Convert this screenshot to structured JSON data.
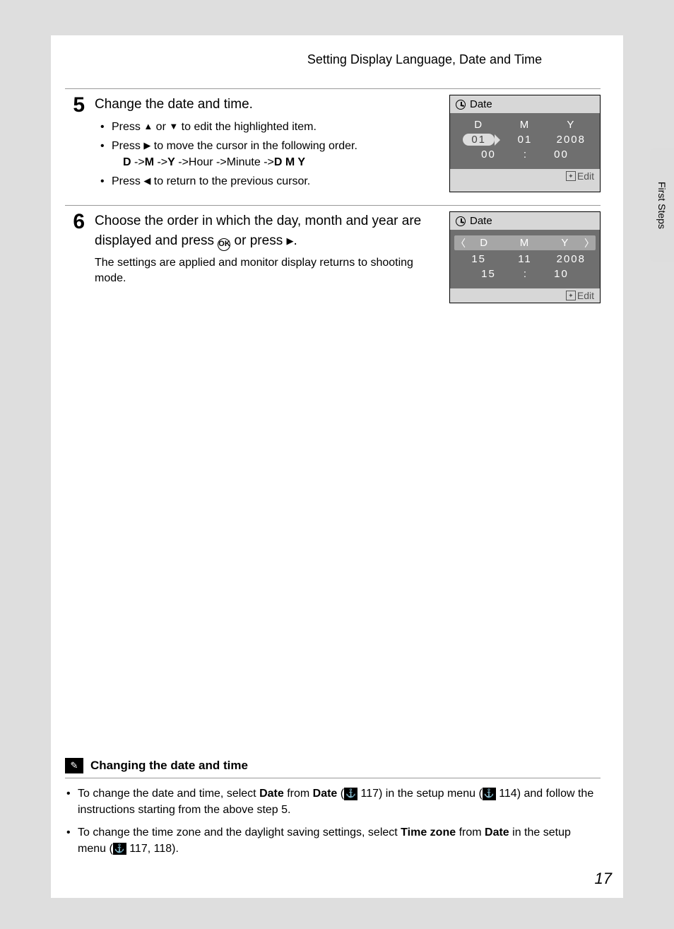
{
  "header": "Setting Display Language, Date and Time",
  "sideTab": "First Steps",
  "pageNumber": "17",
  "steps": [
    {
      "num": "5",
      "heading": "Change the date and time.",
      "bullets": [
        {
          "pre": "Press ",
          "mid": " or ",
          "post": " to edit the highlighted item."
        },
        {
          "pre": "Press ",
          "post": " to move the cursor in the following order."
        },
        {
          "full": "Press ◀ to return to the previous cursor."
        }
      ],
      "subline": {
        "parts": [
          "D",
          " ->",
          "M",
          " ->",
          "Y",
          " ->Hour ->Minute ->",
          "D M Y"
        ]
      },
      "lcd": {
        "title": "Date",
        "hdr": [
          "D",
          "M",
          "Y"
        ],
        "date": [
          "01",
          "01",
          "2008"
        ],
        "time": [
          "00",
          ":",
          "00"
        ],
        "edit": "Edit",
        "highlightDay": true
      }
    },
    {
      "num": "6",
      "heading_a": "Choose the order in which the day, month and year are displayed and press ",
      "heading_b": " or press ",
      "heading_c": ".",
      "note": "The settings are applied and monitor display returns to shooting mode.",
      "lcd": {
        "title": "Date",
        "hdr": [
          "D",
          "M",
          "Y"
        ],
        "date": [
          "15",
          "11",
          "2008"
        ],
        "time": [
          "15",
          ":",
          "10"
        ],
        "edit": "Edit",
        "highlightRow": true
      }
    }
  ],
  "tip": {
    "title": "Changing the date and time",
    "bullets": [
      {
        "p1": "To change the date and time, select ",
        "b1": "Date",
        "p2": " from ",
        "b2": "Date",
        "p3": " (",
        "ref1": "117",
        "p4": ") in the setup menu (",
        "ref2": "114",
        "p5": ") and follow the instructions starting from the above step 5."
      },
      {
        "p1": "To change the time zone and the daylight saving settings, select ",
        "b1": "Time zone",
        "p2": " from ",
        "b2": "Date",
        "p3": " in the setup menu (",
        "ref1": "117",
        "p4": ", ",
        "ref2": "118",
        "p5": ")."
      }
    ]
  }
}
